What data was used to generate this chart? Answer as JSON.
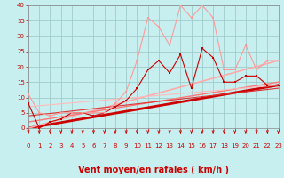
{
  "xlabel": "Vent moyen/en rafales ( km/h )",
  "xlim": [
    0,
    23
  ],
  "ylim": [
    0,
    40
  ],
  "xticks": [
    0,
    1,
    2,
    3,
    4,
    5,
    6,
    7,
    8,
    9,
    10,
    11,
    12,
    13,
    14,
    15,
    16,
    17,
    18,
    19,
    20,
    21,
    22,
    23
  ],
  "yticks": [
    0,
    5,
    10,
    15,
    20,
    25,
    30,
    35,
    40
  ],
  "background_color": "#c8efef",
  "grid_color": "#a0cccc",
  "series": [
    {
      "x": [
        0,
        1,
        2,
        3,
        4,
        5,
        6,
        7,
        8,
        9,
        10,
        11,
        12,
        13,
        14,
        15,
        16,
        17,
        18,
        19,
        20,
        21,
        22,
        23
      ],
      "y": [
        8,
        0,
        2,
        3,
        5,
        5,
        4,
        5,
        7,
        9,
        13,
        19,
        22,
        18,
        24,
        13,
        26,
        23,
        15,
        15,
        17,
        17,
        14,
        14
      ],
      "color": "#cc0000",
      "linewidth": 0.8,
      "marker": "s",
      "markersize": 2.0,
      "alpha": 1.0
    },
    {
      "x": [
        0,
        1,
        2,
        3,
        4,
        5,
        6,
        7,
        8,
        9,
        10,
        11,
        12,
        13,
        14,
        15,
        16,
        17,
        18,
        19,
        20,
        21,
        22,
        23
      ],
      "y": [
        11,
        5,
        4,
        5,
        5,
        5,
        5,
        5,
        8,
        12,
        22,
        36,
        33,
        27,
        40,
        36,
        40,
        36,
        19,
        19,
        27,
        19,
        22,
        22
      ],
      "color": "#ff9999",
      "linewidth": 0.8,
      "marker": "s",
      "markersize": 2.0,
      "alpha": 1.0
    },
    {
      "x": [
        0,
        23
      ],
      "y": [
        0,
        14
      ],
      "color": "#cc0000",
      "linewidth": 2.0,
      "marker": null,
      "alpha": 1.0
    },
    {
      "x": [
        0,
        23
      ],
      "y": [
        0,
        22
      ],
      "color": "#ffaaaa",
      "linewidth": 1.2,
      "marker": null,
      "alpha": 1.0
    },
    {
      "x": [
        0,
        23
      ],
      "y": [
        2,
        15
      ],
      "color": "#ff7777",
      "linewidth": 1.0,
      "marker": null,
      "alpha": 1.0
    },
    {
      "x": [
        0,
        23
      ],
      "y": [
        4,
        13
      ],
      "color": "#dd3333",
      "linewidth": 0.8,
      "marker": null,
      "alpha": 1.0
    },
    {
      "x": [
        0,
        23
      ],
      "y": [
        7,
        14
      ],
      "color": "#ffbbbb",
      "linewidth": 0.8,
      "marker": null,
      "alpha": 1.0
    }
  ],
  "wind_arrow_color": "#cc0000",
  "xlabel_color": "#cc0000",
  "xlabel_fontsize": 7,
  "tick_fontsize": 5,
  "tick_color": "#cc0000"
}
